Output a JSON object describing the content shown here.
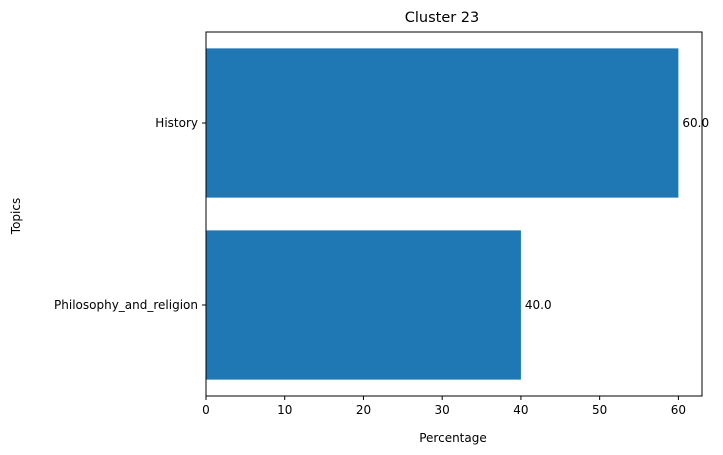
{
  "chart_data": {
    "type": "bar",
    "orientation": "horizontal",
    "title": "Cluster 23",
    "xlabel": "Percentage",
    "ylabel": "Topics",
    "categories": [
      "History",
      "Philosophy_and_religion"
    ],
    "values": [
      60.0,
      40.0
    ],
    "value_labels": [
      "60.0",
      "40.0"
    ],
    "xlim": [
      0,
      63
    ],
    "xticks": [
      0,
      10,
      20,
      30,
      40,
      50,
      60
    ],
    "grid": false,
    "bar_color": "#1f77b4"
  }
}
